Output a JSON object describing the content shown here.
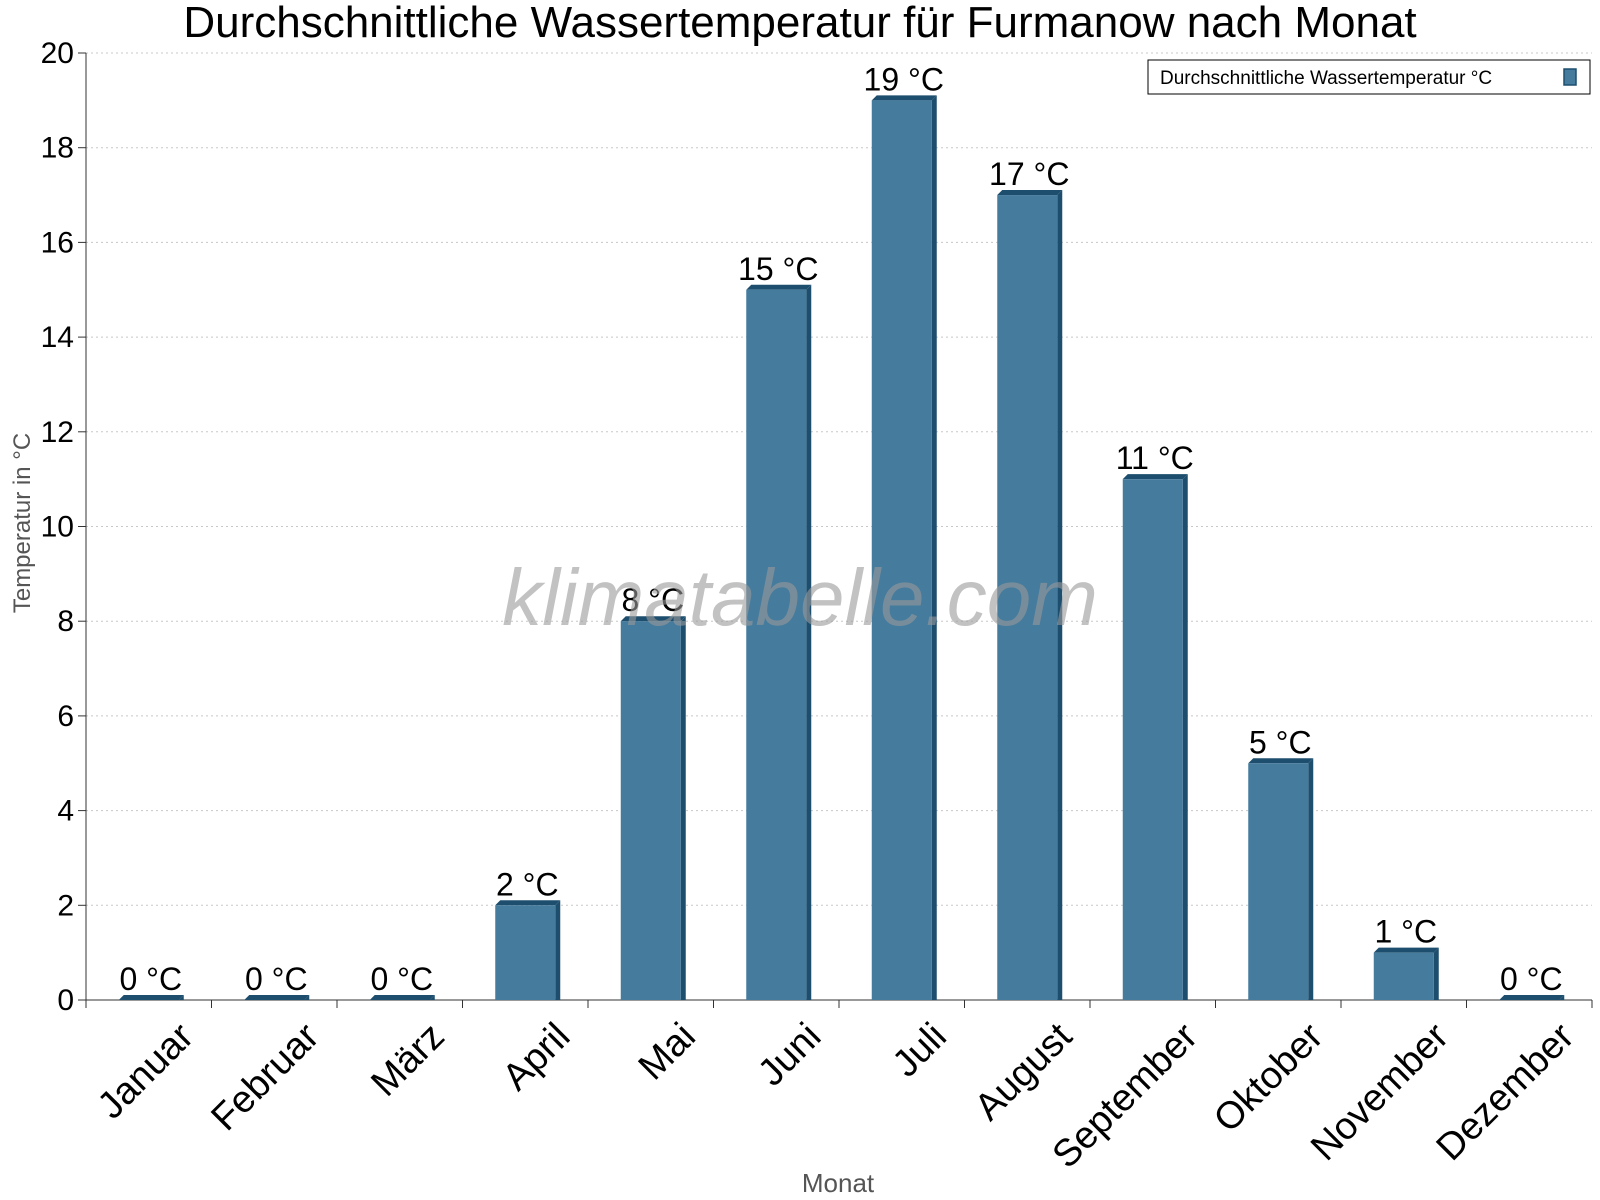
{
  "chart_data": {
    "type": "bar",
    "title": "Durchschnittliche Wassertemperatur für Furmanow nach Monat",
    "xlabel": "Monat",
    "ylabel": "Temperatur in °C",
    "ylim": [
      0,
      20
    ],
    "yticks": [
      0,
      2,
      4,
      6,
      8,
      10,
      12,
      14,
      16,
      18,
      20
    ],
    "grid": true,
    "legend_position": "top-right",
    "categories": [
      "Januar",
      "Februar",
      "März",
      "April",
      "Mai",
      "Juni",
      "Juli",
      "August",
      "September",
      "Oktober",
      "November",
      "Dezember"
    ],
    "series": [
      {
        "name": "Durchschnittliche Wassertemperatur °C",
        "values": [
          0,
          0,
          0,
          2,
          8,
          15,
          19,
          17,
          11,
          5,
          1,
          0
        ],
        "labels": [
          "0 °C",
          "0 °C",
          "0 °C",
          "2 °C",
          "8 °C",
          "15 °C",
          "19 °C",
          "17 °C",
          "11 °C",
          "5 °C",
          "1 °C",
          "0 °C"
        ],
        "color": "#457b9d",
        "edge_color": "#1d4e6e"
      }
    ],
    "watermark": "klimatabelle.com"
  }
}
